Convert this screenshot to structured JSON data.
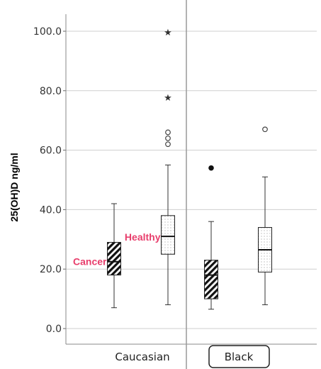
{
  "chart_data": {
    "type": "box",
    "ylabel": "25(OH)D ng/ml",
    "ylim": [
      0,
      100
    ],
    "yticks": [
      "0.0",
      "20.0",
      "40.0",
      "60.0",
      "80.0",
      "100.0"
    ],
    "ytick_values": [
      0,
      20,
      40,
      60,
      80,
      100
    ],
    "grid": true,
    "panels": [
      {
        "label": "Caucasian",
        "highlighted": false
      },
      {
        "label": "Black",
        "highlighted": true
      }
    ],
    "series": [
      {
        "panel": 0,
        "pattern": "hatched",
        "stats": {
          "min": 7,
          "q1": 18,
          "median": 22.5,
          "q3": 29,
          "max": 42
        },
        "outliers": []
      },
      {
        "panel": 0,
        "pattern": "dotted",
        "stats": {
          "min": 8,
          "q1": 25,
          "median": 31,
          "q3": 38,
          "max": 55
        },
        "outliers": [
          {
            "value": 62,
            "marker": "circle"
          },
          {
            "value": 64,
            "marker": "circle"
          },
          {
            "value": 66,
            "marker": "circle"
          },
          {
            "value": 78,
            "marker": "star"
          },
          {
            "value": 100,
            "marker": "star"
          }
        ]
      },
      {
        "panel": 1,
        "pattern": "hatched",
        "stats": {
          "min": 6.5,
          "q1": 10,
          "median": 18,
          "q3": 23,
          "max": 36
        },
        "outliers": [
          {
            "value": 54,
            "marker": "filled-circle"
          }
        ]
      },
      {
        "panel": 1,
        "pattern": "dotted",
        "stats": {
          "min": 8,
          "q1": 19,
          "median": 26.5,
          "q3": 34,
          "max": 51
        },
        "outliers": [
          {
            "value": 67,
            "marker": "circle"
          }
        ]
      }
    ],
    "annotations": [
      {
        "text": "Cancer",
        "series_index": 0,
        "color": "#e83e6c"
      },
      {
        "text": "Healthy",
        "series_index": 1,
        "color": "#e83e6c"
      }
    ]
  }
}
